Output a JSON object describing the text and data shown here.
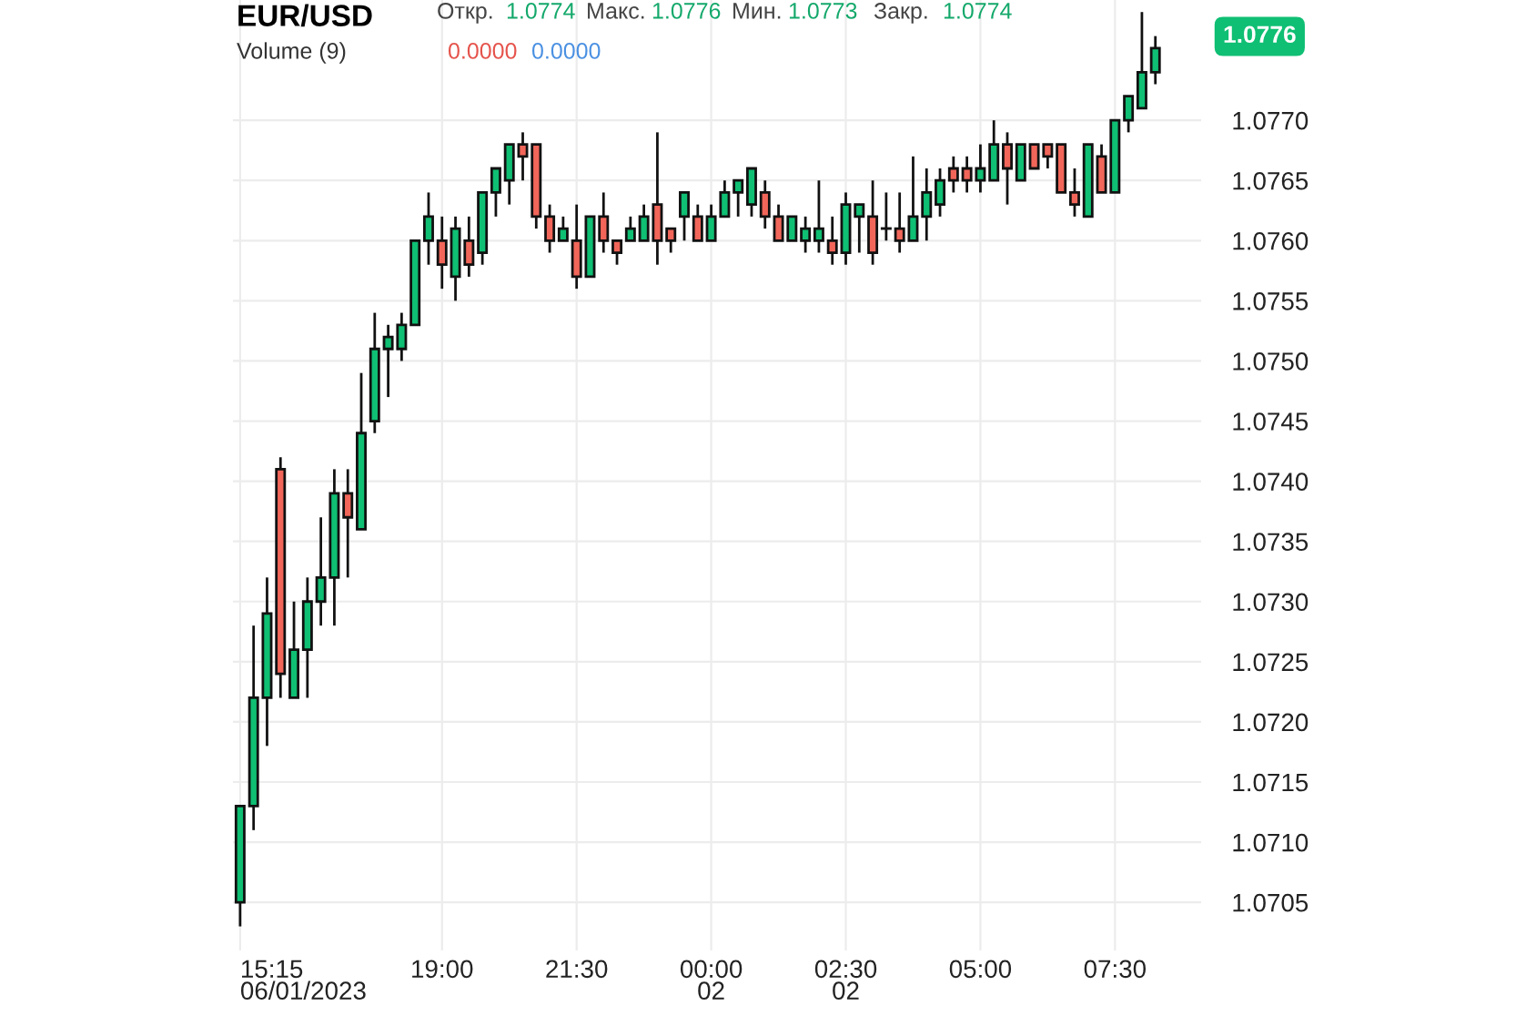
{
  "chart_data": {
    "type": "candlestick",
    "title": "EUR/USD",
    "annotations": [
      "Откр.",
      "1.0774",
      "Макс.",
      "1.0776",
      "Мин.",
      "1.0773",
      "Закр.",
      "1.0774",
      "Volume (9)",
      "0.0000",
      "0.0000",
      "1.0776"
    ],
    "x": [
      "2023-06-01T15:15",
      "2023-06-01T15:30",
      "2023-06-01T15:45",
      "2023-06-01T16:00",
      "2023-06-01T16:15",
      "2023-06-01T16:30",
      "2023-06-01T16:45",
      "2023-06-01T17:00",
      "2023-06-01T17:15",
      "2023-06-01T17:30",
      "2023-06-01T17:45",
      "2023-06-01T18:00",
      "2023-06-01T18:15",
      "2023-06-01T18:30",
      "2023-06-01T18:45",
      "2023-06-01T19:00",
      "2023-06-01T19:15",
      "2023-06-01T19:30",
      "2023-06-01T19:45",
      "2023-06-01T20:00",
      "2023-06-01T20:15",
      "2023-06-01T20:30",
      "2023-06-01T20:45",
      "2023-06-01T21:00",
      "2023-06-01T21:15",
      "2023-06-01T21:30",
      "2023-06-01T21:45",
      "2023-06-01T22:00",
      "2023-06-01T22:15",
      "2023-06-01T22:30",
      "2023-06-01T22:45",
      "2023-06-01T23:00",
      "2023-06-01T23:15",
      "2023-06-01T23:30",
      "2023-06-01T23:45",
      "2023-06-02T00:00",
      "2023-06-02T00:15",
      "2023-06-02T00:30",
      "2023-06-02T00:45",
      "2023-06-02T01:00",
      "2023-06-02T01:15",
      "2023-06-02T01:30",
      "2023-06-02T01:45",
      "2023-06-02T02:00",
      "2023-06-02T02:15",
      "2023-06-02T02:30",
      "2023-06-02T02:45",
      "2023-06-02T03:00",
      "2023-06-02T03:15",
      "2023-06-02T03:30",
      "2023-06-02T03:45",
      "2023-06-02T04:00",
      "2023-06-02T04:15",
      "2023-06-02T04:30",
      "2023-06-02T04:45",
      "2023-06-02T05:00",
      "2023-06-02T05:15",
      "2023-06-02T05:30",
      "2023-06-02T05:45",
      "2023-06-02T06:00",
      "2023-06-02T06:15",
      "2023-06-02T06:30",
      "2023-06-02T06:45",
      "2023-06-02T07:00",
      "2023-06-02T07:15",
      "2023-06-02T07:30",
      "2023-06-02T07:45",
      "2023-06-02T08:00",
      "2023-06-02T08:15"
    ],
    "ohlc": [
      [
        1.0705,
        1.0713,
        1.0703,
        1.0713
      ],
      [
        1.0713,
        1.0728,
        1.0711,
        1.0722
      ],
      [
        1.0722,
        1.0732,
        1.0718,
        1.0729
      ],
      [
        1.0741,
        1.0742,
        1.0722,
        1.0724
      ],
      [
        1.0722,
        1.073,
        1.0722,
        1.0726
      ],
      [
        1.0726,
        1.0732,
        1.0722,
        1.073
      ],
      [
        1.073,
        1.0737,
        1.0728,
        1.0732
      ],
      [
        1.0732,
        1.0741,
        1.0728,
        1.0739
      ],
      [
        1.0739,
        1.0741,
        1.0732,
        1.0737
      ],
      [
        1.0736,
        1.0749,
        1.0736,
        1.0744
      ],
      [
        1.0745,
        1.0754,
        1.0744,
        1.0751
      ],
      [
        1.0751,
        1.0753,
        1.0747,
        1.0752
      ],
      [
        1.0751,
        1.0754,
        1.075,
        1.0753
      ],
      [
        1.0753,
        1.076,
        1.0753,
        1.076
      ],
      [
        1.076,
        1.0764,
        1.0758,
        1.0762
      ],
      [
        1.076,
        1.0762,
        1.0756,
        1.0758
      ],
      [
        1.0757,
        1.0762,
        1.0755,
        1.0761
      ],
      [
        1.076,
        1.0762,
        1.0757,
        1.0758
      ],
      [
        1.0759,
        1.0764,
        1.0758,
        1.0764
      ],
      [
        1.0764,
        1.0766,
        1.0762,
        1.0766
      ],
      [
        1.0765,
        1.0768,
        1.0763,
        1.0768
      ],
      [
        1.0768,
        1.0769,
        1.0765,
        1.0767
      ],
      [
        1.0768,
        1.0768,
        1.0761,
        1.0762
      ],
      [
        1.0762,
        1.0763,
        1.0759,
        1.076
      ],
      [
        1.076,
        1.0762,
        1.076,
        1.0761
      ],
      [
        1.076,
        1.0763,
        1.0756,
        1.0757
      ],
      [
        1.0757,
        1.0762,
        1.0757,
        1.0762
      ],
      [
        1.0762,
        1.0764,
        1.0759,
        1.076
      ],
      [
        1.076,
        1.076,
        1.0758,
        1.0759
      ],
      [
        1.076,
        1.0762,
        1.076,
        1.0761
      ],
      [
        1.076,
        1.0763,
        1.076,
        1.0762
      ],
      [
        1.0763,
        1.0769,
        1.0758,
        1.076
      ],
      [
        1.0761,
        1.0761,
        1.0759,
        1.076
      ],
      [
        1.0762,
        1.0764,
        1.076,
        1.0764
      ],
      [
        1.0762,
        1.0763,
        1.076,
        1.076
      ],
      [
        1.076,
        1.0763,
        1.076,
        1.0762
      ],
      [
        1.0762,
        1.0765,
        1.0762,
        1.0764
      ],
      [
        1.0764,
        1.0765,
        1.0762,
        1.0765
      ],
      [
        1.0763,
        1.0766,
        1.0762,
        1.0766
      ],
      [
        1.0764,
        1.0765,
        1.0761,
        1.0762
      ],
      [
        1.0762,
        1.0763,
        1.076,
        1.076
      ],
      [
        1.076,
        1.0762,
        1.076,
        1.0762
      ],
      [
        1.076,
        1.0762,
        1.0759,
        1.0761
      ],
      [
        1.076,
        1.0765,
        1.0759,
        1.0761
      ],
      [
        1.076,
        1.0762,
        1.0758,
        1.0759
      ],
      [
        1.0759,
        1.0764,
        1.0758,
        1.0763
      ],
      [
        1.0762,
        1.0763,
        1.0759,
        1.0763
      ],
      [
        1.0762,
        1.0765,
        1.0758,
        1.0759
      ],
      [
        1.0761,
        1.0764,
        1.076,
        1.0761
      ],
      [
        1.0761,
        1.0764,
        1.0759,
        1.076
      ],
      [
        1.076,
        1.0767,
        1.076,
        1.0762
      ],
      [
        1.0762,
        1.0766,
        1.076,
        1.0764
      ],
      [
        1.0763,
        1.0766,
        1.0762,
        1.0765
      ],
      [
        1.0766,
        1.0767,
        1.0764,
        1.0765
      ],
      [
        1.0766,
        1.0767,
        1.0764,
        1.0765
      ],
      [
        1.0765,
        1.0768,
        1.0764,
        1.0766
      ],
      [
        1.0765,
        1.077,
        1.0765,
        1.0768
      ],
      [
        1.0768,
        1.0769,
        1.0763,
        1.0766
      ],
      [
        1.0765,
        1.0768,
        1.0765,
        1.0768
      ],
      [
        1.0768,
        1.0768,
        1.0766,
        1.0766
      ],
      [
        1.0768,
        1.0768,
        1.0766,
        1.0767
      ],
      [
        1.0768,
        1.0768,
        1.0764,
        1.0764
      ],
      [
        1.0764,
        1.0766,
        1.0762,
        1.0763
      ],
      [
        1.0762,
        1.0768,
        1.0762,
        1.0768
      ],
      [
        1.0767,
        1.0768,
        1.0764,
        1.0764
      ],
      [
        1.0764,
        1.077,
        1.0764,
        1.077
      ],
      [
        1.077,
        1.0772,
        1.0769,
        1.0772
      ],
      [
        1.0771,
        1.0779,
        1.0771,
        1.0774
      ],
      [
        1.0774,
        1.0777,
        1.0773,
        1.0776
      ]
    ],
    "colors": [
      "#0fbf73",
      "#0fbf73",
      "#0fbf73",
      "#f2665a",
      "#0fbf73",
      "#0fbf73",
      "#0fbf73",
      "#0fbf73",
      "#f2665a",
      "#0fbf73",
      "#0fbf73",
      "#0fbf73",
      "#0fbf73",
      "#0fbf73",
      "#0fbf73",
      "#f2665a",
      "#0fbf73",
      "#f2665a",
      "#0fbf73",
      "#0fbf73",
      "#0fbf73",
      "#f2665a",
      "#f2665a",
      "#f2665a",
      "#0fbf73",
      "#f2665a",
      "#0fbf73",
      "#f2665a",
      "#f2665a",
      "#0fbf73",
      "#0fbf73",
      "#f2665a",
      "#f2665a",
      "#0fbf73",
      "#f2665a",
      "#0fbf73",
      "#0fbf73",
      "#0fbf73",
      "#0fbf73",
      "#f2665a",
      "#f2665a",
      "#0fbf73",
      "#0fbf73",
      "#0fbf73",
      "#f2665a",
      "#0fbf73",
      "#0fbf73",
      "#f2665a",
      "#0fbf73",
      "#f2665a",
      "#0fbf73",
      "#0fbf73",
      "#0fbf73",
      "#f2665a",
      "#f2665a",
      "#0fbf73",
      "#0fbf73",
      "#f2665a",
      "#0fbf73",
      "#f2665a",
      "#f2665a",
      "#f2665a",
      "#f2665a",
      "#0fbf73",
      "#f2665a",
      "#0fbf73",
      "#0fbf73",
      "#0fbf73",
      "#0fbf73"
    ],
    "xlim": [
      "2023-06-01T15:07",
      "2023-06-02T09:06"
    ],
    "xticks": [
      {
        "value": "2023-06-01T15:15",
        "label": "15:15\n06/01/2023"
      },
      {
        "value": "2023-06-01T19:00",
        "label": "19:00"
      },
      {
        "value": "2023-06-01T21:30",
        "label": "21:30"
      },
      {
        "value": "2023-06-02T00:00",
        "label": "00:00\n02"
      },
      {
        "value": "2023-06-02T02:30",
        "label": "02:30\n02"
      },
      {
        "value": "2023-06-02T05:00",
        "label": "05:00"
      },
      {
        "value": "2023-06-02T07:30",
        "label": "07:30"
      }
    ],
    "ylim": [
      1.0701,
      1.078
    ],
    "yticks": [
      {
        "value": 1.0705,
        "label": "1.0705"
      },
      {
        "value": 1.071,
        "label": "1.0710"
      },
      {
        "value": 1.0715,
        "label": "1.0715"
      },
      {
        "value": 1.072,
        "label": "1.0720"
      },
      {
        "value": 1.0725,
        "label": "1.0725"
      },
      {
        "value": 1.073,
        "label": "1.0730"
      },
      {
        "value": 1.0735,
        "label": "1.0735"
      },
      {
        "value": 1.074,
        "label": "1.0740"
      },
      {
        "value": 1.0745,
        "label": "1.0745"
      },
      {
        "value": 1.075,
        "label": "1.0750"
      },
      {
        "value": 1.0755,
        "label": "1.0755"
      },
      {
        "value": 1.076,
        "label": "1.0760"
      },
      {
        "value": 1.0765,
        "label": "1.0765"
      },
      {
        "value": 1.077,
        "label": "1.0770"
      }
    ],
    "grid": true
  }
}
